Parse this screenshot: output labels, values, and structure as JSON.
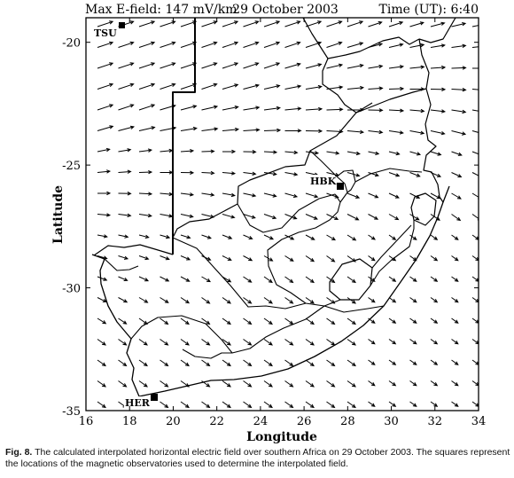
{
  "header": {
    "left": "Max E-field: 147 mV/km",
    "center": "29 October 2003",
    "right": "Time (UT): 6:40"
  },
  "chart_data": {
    "type": "vector-field map",
    "xlabel": "Longitude",
    "ylabel": "Latitude",
    "xlim": [
      16,
      34
    ],
    "ylim": [
      -35,
      -19
    ],
    "x_ticks": [
      "16",
      "18",
      "20",
      "22",
      "24",
      "26",
      "28",
      "30",
      "32",
      "34"
    ],
    "y_ticks": [
      "-20",
      "-25",
      "-30",
      "-35"
    ],
    "observatories": [
      {
        "name": "TSU",
        "lon": 17.6,
        "lat": -19.2
      },
      {
        "name": "HBK",
        "lon": 27.7,
        "lat": -25.9
      },
      {
        "name": "HER",
        "lon": 19.2,
        "lat": -34.4
      }
    ]
  },
  "caption": {
    "label": "Fig. 8.",
    "text": " The calculated interpolated horizontal electric field over southern Africa on 29 October 2003. The squares represent the locations of the magnetic observatories used to determine the interpolated field."
  }
}
